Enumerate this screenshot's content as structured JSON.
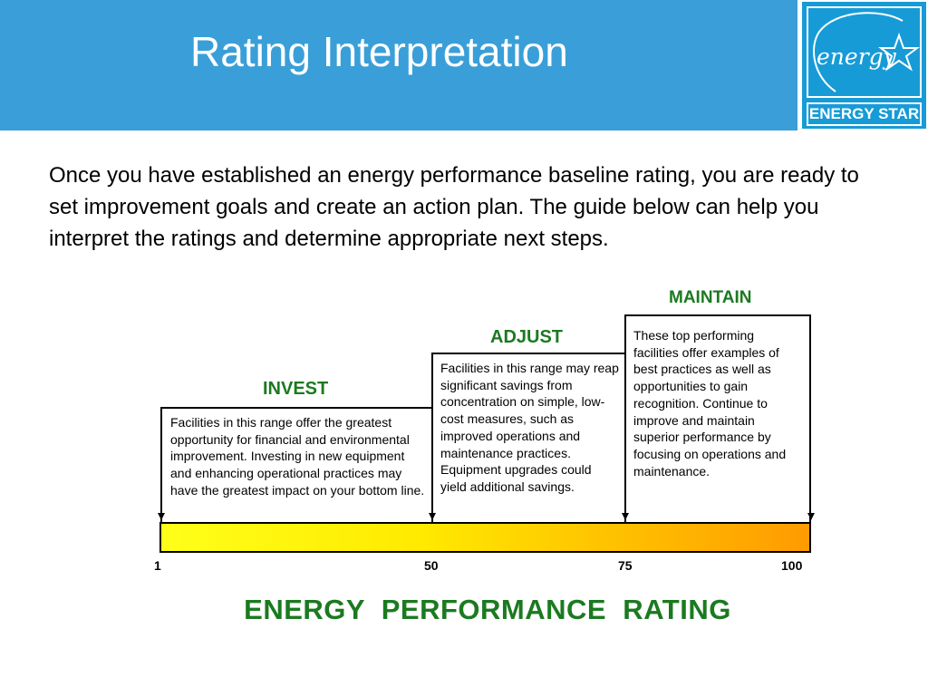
{
  "slide": {
    "title": "Rating Interpretation",
    "header_color": "#3a9fd8"
  },
  "logo": {
    "script_text": "energy",
    "label": "ENERGY STAR",
    "color": "#179bd7"
  },
  "intro_text": "Once you have established an energy performance baseline rating, you are ready to set improvement goals and create an action plan. The guide below can help you interpret the ratings and determine appropriate next steps.",
  "tiers": [
    {
      "name": "INVEST",
      "range": [
        1,
        50
      ],
      "description": "Facilities in this range offer the  greatest opportunity for financial and environmental improvement. Investing in new equipment and enhancing operational practices may have the greatest impact on your bottom line."
    },
    {
      "name": "ADJUST",
      "range": [
        50,
        75
      ],
      "description": "Facilities in this range may reap significant savings from concentration on simple, low-cost measures, such as improved operations and maintenance practices. Equipment upgrades could yield additional savings."
    },
    {
      "name": "MAINTAIN",
      "range": [
        75,
        100
      ],
      "description": "These top performing facilities offer examples of best practices as well as opportunities to gain recognition. Continue to improve and maintain superior performance by focusing on operations and maintenance."
    }
  ],
  "scale": {
    "ticks": [
      "1",
      "50",
      "75",
      "100"
    ],
    "title": "ENERGY  PERFORMANCE  RATING",
    "gradient": [
      "#ffff19",
      "#ff9b00"
    ],
    "label_color": "#1b7a20"
  }
}
